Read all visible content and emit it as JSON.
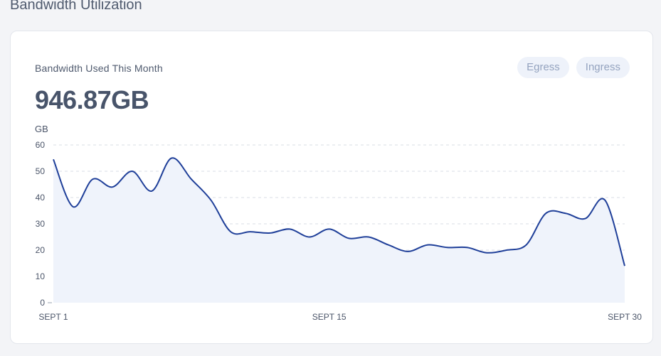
{
  "section": {
    "title": "Bandwidth Utilization"
  },
  "card": {
    "label": "Bandwidth Used This Month",
    "value": "946.87GB",
    "toggles": [
      {
        "label": "Egress"
      },
      {
        "label": "Ingress"
      }
    ]
  },
  "colors": {
    "line": "#1f3f99",
    "area": "#eff3fb",
    "grid": "#d9dde5",
    "pill_bg": "#eef2fa",
    "pill_text": "#94a3bf"
  },
  "chart_data": {
    "type": "area",
    "ylabel": "GB",
    "ylim": [
      0,
      60
    ],
    "yticks": [
      0,
      10,
      20,
      30,
      40,
      50,
      60
    ],
    "grid": true,
    "x_tick_labels": [
      {
        "at": 0,
        "label": "SEPT 1"
      },
      {
        "at": 14,
        "label": "SEPT 15"
      },
      {
        "at": 29,
        "label": "SEPT 30"
      }
    ],
    "series": [
      {
        "values": [
          54.5,
          36.5,
          47,
          44,
          50,
          42.5,
          55,
          47,
          39,
          27,
          27,
          26.5,
          28,
          25,
          28,
          24.5,
          25,
          22,
          19.5,
          22,
          21,
          21,
          19,
          20,
          22,
          34,
          34,
          32,
          39,
          14
        ]
      }
    ]
  }
}
